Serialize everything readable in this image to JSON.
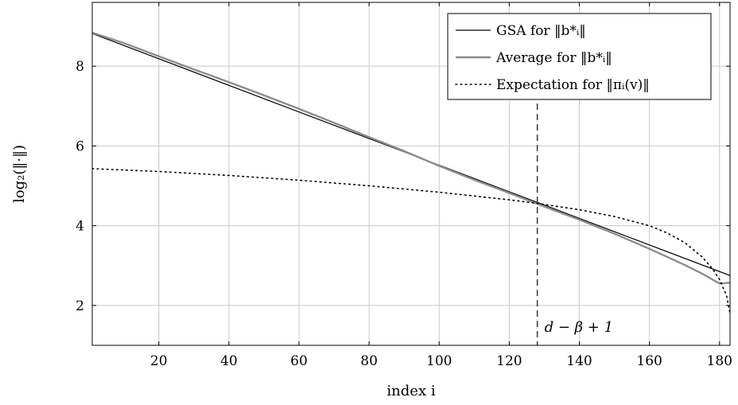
{
  "chart_data": {
    "type": "line",
    "title": "",
    "xlabel": "index i",
    "ylabel": "log₂(‖·‖)",
    "xlim": [
      1,
      183
    ],
    "ylim": [
      1,
      9.6
    ],
    "xticks": [
      20,
      40,
      60,
      80,
      100,
      120,
      140,
      160,
      180
    ],
    "yticks": [
      2,
      4,
      6,
      8
    ],
    "grid": true,
    "legend_position": "top-right",
    "series": [
      {
        "name": "GSA for ‖b*ᵢ‖",
        "style": "solid",
        "color": "#000000",
        "x": [
          1,
          183
        ],
        "y": [
          8.82,
          2.75
        ]
      },
      {
        "name": "Average for ‖b*ᵢ‖",
        "style": "solid",
        "color": "#8c8c8c",
        "x": [
          1,
          10,
          20,
          30,
          40,
          50,
          60,
          70,
          80,
          90,
          100,
          110,
          120,
          128,
          130,
          140,
          150,
          160,
          170,
          175,
          180,
          183
        ],
        "y": [
          8.84,
          8.58,
          8.25,
          7.92,
          7.6,
          7.27,
          6.93,
          6.58,
          6.22,
          5.87,
          5.5,
          5.15,
          4.82,
          4.55,
          4.48,
          4.15,
          3.8,
          3.42,
          3.02,
          2.8,
          2.55,
          2.57
        ]
      },
      {
        "name": "Expectation for ‖πᵢ(v)‖",
        "style": "dotted",
        "color": "#000000",
        "x": [
          1,
          20,
          40,
          60,
          80,
          100,
          120,
          128,
          140,
          150,
          160,
          165,
          170,
          175,
          178,
          180,
          182,
          183
        ],
        "y": [
          5.43,
          5.36,
          5.26,
          5.14,
          5.0,
          4.84,
          4.65,
          4.56,
          4.4,
          4.23,
          4.0,
          3.82,
          3.58,
          3.22,
          2.92,
          2.65,
          2.25,
          1.8
        ]
      }
    ],
    "annotations": [
      {
        "text": "d − β + 1",
        "x": 128,
        "style": "dashed-vertical-line"
      }
    ]
  }
}
